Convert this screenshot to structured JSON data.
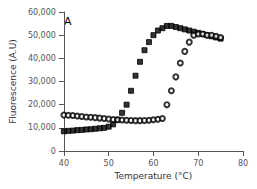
{
  "chart_data": {
    "type": "scatter",
    "xlabel": "Temperature (°C)",
    "ylabel": "Fluorescence (A.U)",
    "annotations": [
      {
        "text": "A"
      }
    ],
    "xlim": [
      40,
      80
    ],
    "ylim": [
      0,
      60000
    ],
    "xticks": [
      40,
      50,
      60,
      70,
      80
    ],
    "yticks": [
      0,
      10000,
      20000,
      30000,
      40000,
      50000,
      60000
    ],
    "grid": false,
    "x": [
      40,
      41,
      42,
      43,
      44,
      45,
      46,
      47,
      48,
      49,
      50,
      51,
      52,
      53,
      54,
      55,
      56,
      57,
      58,
      59,
      60,
      61,
      62,
      63,
      64,
      65,
      66,
      67,
      68,
      69,
      70,
      71,
      72,
      73,
      74,
      75
    ],
    "series": [
      {
        "color": "#000000",
        "marker": "square",
        "values": [
          8500,
          8700,
          8800,
          9000,
          9100,
          9300,
          9400,
          9600,
          9800,
          10000,
          10500,
          11500,
          13500,
          16500,
          20000,
          26000,
          32500,
          38500,
          43500,
          47000,
          50000,
          52000,
          53000,
          54000,
          54000,
          53500,
          53000,
          52500,
          52000,
          51500,
          51000,
          50500,
          50000,
          49500,
          49000,
          48500
        ]
      },
      {
        "color": "#000000",
        "marker": "open-circle",
        "values": [
          15500,
          15400,
          15300,
          15100,
          14900,
          14700,
          14600,
          14400,
          14200,
          14000,
          13800,
          13600,
          13500,
          13400,
          13300,
          13200,
          13100,
          13100,
          13200,
          13300,
          13500,
          13700,
          14000,
          20000,
          26000,
          32000,
          38000,
          43000,
          47000,
          50000,
          50500,
          50500,
          50000,
          50000,
          49500,
          49000
        ]
      }
    ]
  }
}
